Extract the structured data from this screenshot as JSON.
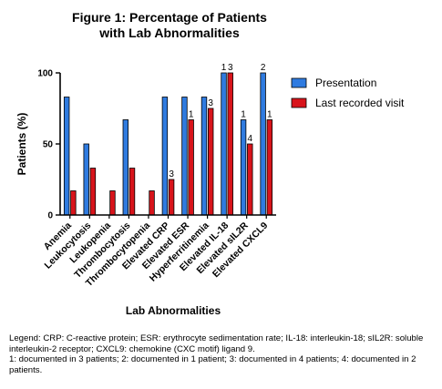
{
  "chart_data": {
    "type": "bar",
    "title": [
      "Figure 1: Percentage of Patients",
      "with Lab Abnormalities"
    ],
    "xlabel": "Lab Abnormalities",
    "ylabel": "Patients (%)",
    "ylim": [
      0,
      100
    ],
    "yticks": [
      0,
      50,
      100
    ],
    "categories": [
      "Anemia",
      "Leukocytosis",
      "Leukopenia",
      "Thrombocytosis",
      "Thrombocytopenia",
      "Elevated CRP",
      "Elevated ESR",
      "Hyperferritinemia",
      "Elevated IL-18",
      "Elevated sIL2R",
      "Elevated CXCL9"
    ],
    "series": [
      {
        "name": "Presentation",
        "color": "#2F7BE0",
        "values": [
          83,
          50,
          0,
          67,
          0,
          83,
          83,
          83,
          100,
          67,
          100
        ]
      },
      {
        "name": "Last recorded visit",
        "color": "#D8141B",
        "values": [
          17,
          33,
          17,
          33,
          17,
          25,
          67,
          75,
          100,
          50,
          67
        ]
      }
    ],
    "annotations": [
      {
        "category": 5,
        "series": 1,
        "text": "3"
      },
      {
        "category": 6,
        "series": 1,
        "text": "1"
      },
      {
        "category": 7,
        "series": 1,
        "text": "3"
      },
      {
        "category": 8,
        "series": 0,
        "text": "1"
      },
      {
        "category": 8,
        "series": 1,
        "text": "3"
      },
      {
        "category": 9,
        "series": 0,
        "text": "1"
      },
      {
        "category": 9,
        "series": 1,
        "text": "4"
      },
      {
        "category": 10,
        "series": 0,
        "text": "2"
      },
      {
        "category": 10,
        "series": 1,
        "text": "1"
      }
    ],
    "legend_position": "right"
  },
  "caption": {
    "legend_text": "Legend: CRP: C-reactive protein; ESR: erythrocyte sedimentation rate; IL-18: interleukin-18; sIL2R: soluble interleukin-2 receptor; CXCL9: chemokine (CXC motif) ligand 9.",
    "footnote_text": "1: documented in 3 patients; 2: documented in 1 patient; 3: documented in 4 patients; 4: documented in 2 patients."
  }
}
